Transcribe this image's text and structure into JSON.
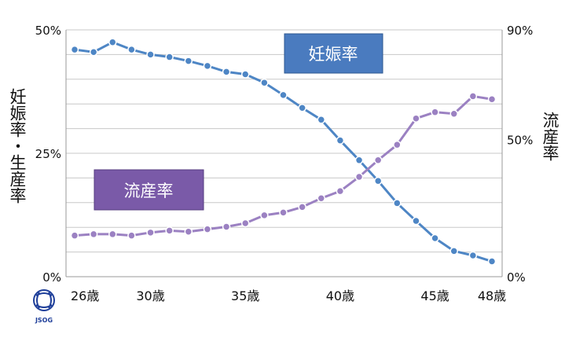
{
  "chart_data": {
    "type": "line",
    "x": [
      26,
      27,
      28,
      29,
      30,
      31,
      32,
      33,
      34,
      35,
      36,
      37,
      38,
      39,
      40,
      41,
      42,
      43,
      44,
      45,
      46,
      47,
      48
    ],
    "x_tick_labels": [
      "26歳",
      "30歳",
      "35歳",
      "40歳",
      "45歳",
      "48歳"
    ],
    "y_left_label": "妊娠率・生産率",
    "y_left_ticks": [
      "50%",
      "25%",
      "0%"
    ],
    "y_left_range": [
      0,
      50
    ],
    "y_right_label": "流産率",
    "y_right_ticks": [
      "90%",
      "50%",
      "0%"
    ],
    "y_right_range": [
      0,
      90
    ],
    "grid": "horizontal",
    "series": [
      {
        "name": "妊娠率",
        "axis": "left",
        "color": "#4e86c5",
        "values": [
          46.0,
          45.5,
          47.5,
          46.0,
          45.0,
          44.5,
          43.7,
          42.7,
          41.5,
          41.0,
          39.3,
          36.8,
          34.2,
          31.8,
          27.6,
          23.6,
          19.4,
          14.9,
          11.3,
          7.8,
          5.2,
          4.3,
          3.1
        ]
      },
      {
        "name": "流産率",
        "axis": "right",
        "color": "#9b81c2",
        "values": [
          15.0,
          15.5,
          15.5,
          15.0,
          16.1,
          16.8,
          16.4,
          17.3,
          18.2,
          19.5,
          22.4,
          23.4,
          25.4,
          28.6,
          31.2,
          36.4,
          42.5,
          48.1,
          57.7,
          60.0,
          59.4,
          65.8,
          64.7
        ]
      }
    ]
  },
  "labels": {
    "pregnancy_box": "妊娠率",
    "miscarriage_box": "流産率",
    "logo_text": "JSOG"
  },
  "colors": {
    "pregnancy_box_fill": "#4a7bbf",
    "miscarriage_box_fill": "#7a5aa8",
    "grid": "#c8c8c8",
    "logo": "#1f3f9a"
  }
}
